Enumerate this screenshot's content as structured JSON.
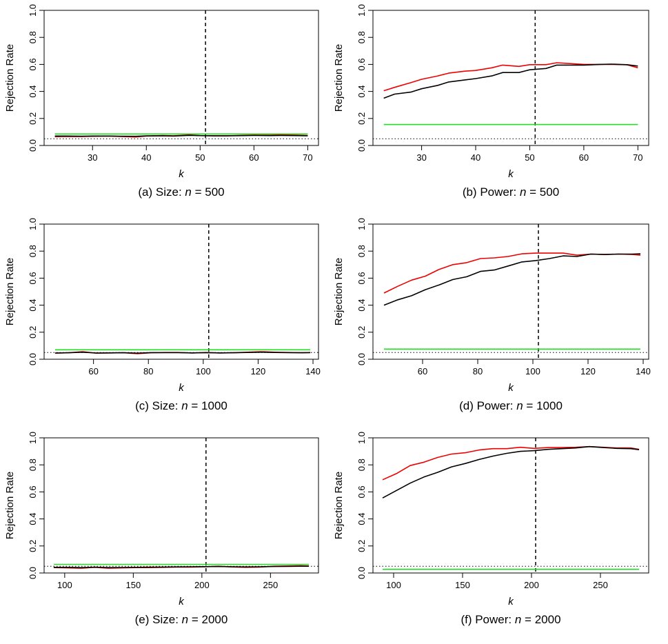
{
  "chart_data": [
    {
      "id": "a",
      "type": "line",
      "caption_prefix": "(a) Size: ",
      "caption_var": "n",
      "caption_suffix": " = 500",
      "xlabel": "k",
      "ylabel": "Rejection Rate",
      "xlim": [
        21,
        72
      ],
      "ylim": [
        0,
        1
      ],
      "xticks": [
        30,
        40,
        50,
        60,
        70
      ],
      "yticks": [
        0.0,
        0.2,
        0.4,
        0.6,
        0.8,
        1.0
      ],
      "vline": 51,
      "hline": 0.05,
      "series": [
        {
          "name": "green",
          "color": "#22dd22",
          "x": [
            23,
            70
          ],
          "y": [
            0.085,
            0.085
          ]
        },
        {
          "name": "red",
          "color": "#ee0000",
          "x": [
            23,
            25,
            28,
            30,
            33,
            35,
            38,
            40,
            43,
            45,
            48,
            50,
            53,
            55,
            58,
            60,
            63,
            65,
            68,
            70
          ],
          "y": [
            0.065,
            0.067,
            0.066,
            0.068,
            0.07,
            0.067,
            0.063,
            0.07,
            0.074,
            0.072,
            0.078,
            0.073,
            0.071,
            0.072,
            0.075,
            0.077,
            0.076,
            0.078,
            0.076,
            0.074
          ]
        },
        {
          "name": "black",
          "color": "#000000",
          "x": [
            23,
            25,
            28,
            30,
            33,
            35,
            38,
            40,
            43,
            45,
            48,
            50,
            53,
            55,
            58,
            60,
            63,
            65,
            68,
            70
          ],
          "y": [
            0.07,
            0.07,
            0.069,
            0.07,
            0.07,
            0.069,
            0.068,
            0.071,
            0.072,
            0.07,
            0.075,
            0.073,
            0.072,
            0.072,
            0.073,
            0.074,
            0.073,
            0.074,
            0.073,
            0.072
          ]
        }
      ]
    },
    {
      "id": "b",
      "type": "line",
      "caption_prefix": "(b) Power: ",
      "caption_var": "n",
      "caption_suffix": " = 500",
      "xlabel": "k",
      "ylabel": "Rejection Rate",
      "xlim": [
        21,
        72
      ],
      "ylim": [
        0,
        1
      ],
      "xticks": [
        30,
        40,
        50,
        60,
        70
      ],
      "yticks": [
        0.0,
        0.2,
        0.4,
        0.6,
        0.8,
        1.0
      ],
      "vline": 51,
      "hline": 0.05,
      "series": [
        {
          "name": "green",
          "color": "#22dd22",
          "x": [
            23,
            70
          ],
          "y": [
            0.155,
            0.155
          ]
        },
        {
          "name": "red",
          "color": "#ee0000",
          "x": [
            23,
            25,
            28,
            30,
            33,
            35,
            38,
            40,
            43,
            45,
            48,
            50,
            53,
            55,
            58,
            60,
            63,
            65,
            68,
            70
          ],
          "y": [
            0.405,
            0.43,
            0.465,
            0.49,
            0.515,
            0.535,
            0.55,
            0.555,
            0.575,
            0.595,
            0.585,
            0.598,
            0.598,
            0.612,
            0.605,
            0.6,
            0.6,
            0.6,
            0.597,
            0.575
          ]
        },
        {
          "name": "black",
          "color": "#000000",
          "x": [
            23,
            25,
            28,
            30,
            33,
            35,
            38,
            40,
            43,
            45,
            48,
            50,
            53,
            55,
            58,
            60,
            63,
            65,
            68,
            70
          ],
          "y": [
            0.35,
            0.38,
            0.395,
            0.42,
            0.445,
            0.47,
            0.485,
            0.495,
            0.515,
            0.54,
            0.54,
            0.56,
            0.57,
            0.595,
            0.595,
            0.595,
            0.6,
            0.602,
            0.598,
            0.588
          ]
        }
      ]
    },
    {
      "id": "c",
      "type": "line",
      "caption_prefix": "(c) Size: ",
      "caption_var": "n",
      "caption_suffix": " = 1000",
      "xlabel": "k",
      "ylabel": "Rejection Rate",
      "xlim": [
        42,
        142
      ],
      "ylim": [
        0,
        1
      ],
      "xticks": [
        60,
        80,
        100,
        120,
        140
      ],
      "yticks": [
        0.0,
        0.2,
        0.4,
        0.6,
        0.8,
        1.0
      ],
      "vline": 102,
      "hline": 0.05,
      "series": [
        {
          "name": "green",
          "color": "#22dd22",
          "x": [
            46,
            139
          ],
          "y": [
            0.07,
            0.07
          ]
        },
        {
          "name": "red",
          "color": "#ee0000",
          "x": [
            46,
            51,
            56,
            61,
            66,
            71,
            76,
            81,
            86,
            91,
            96,
            101,
            106,
            111,
            116,
            121,
            126,
            131,
            136,
            139
          ],
          "y": [
            0.045,
            0.048,
            0.056,
            0.045,
            0.047,
            0.048,
            0.041,
            0.048,
            0.05,
            0.05,
            0.046,
            0.05,
            0.046,
            0.048,
            0.052,
            0.056,
            0.052,
            0.05,
            0.048,
            0.05
          ]
        },
        {
          "name": "black",
          "color": "#000000",
          "x": [
            46,
            51,
            56,
            61,
            66,
            71,
            76,
            81,
            86,
            91,
            96,
            101,
            106,
            111,
            116,
            121,
            126,
            131,
            136,
            139
          ],
          "y": [
            0.046,
            0.048,
            0.052,
            0.046,
            0.047,
            0.048,
            0.045,
            0.049,
            0.049,
            0.049,
            0.047,
            0.049,
            0.047,
            0.048,
            0.05,
            0.052,
            0.05,
            0.049,
            0.048,
            0.049
          ]
        }
      ]
    },
    {
      "id": "d",
      "type": "line",
      "caption_prefix": "(d) Power: ",
      "caption_var": "n",
      "caption_suffix": " = 1000",
      "xlabel": "k",
      "ylabel": "Rejection Rate",
      "xlim": [
        42,
        142
      ],
      "ylim": [
        0,
        1
      ],
      "xticks": [
        60,
        80,
        100,
        120,
        140
      ],
      "yticks": [
        0.0,
        0.2,
        0.4,
        0.6,
        0.8,
        1.0
      ],
      "vline": 102,
      "hline": 0.05,
      "series": [
        {
          "name": "green",
          "color": "#22dd22",
          "x": [
            46,
            139
          ],
          "y": [
            0.075,
            0.075
          ]
        },
        {
          "name": "red",
          "color": "#ee0000",
          "x": [
            46,
            51,
            56,
            61,
            66,
            71,
            76,
            81,
            86,
            91,
            96,
            101,
            106,
            111,
            116,
            121,
            126,
            131,
            136,
            139
          ],
          "y": [
            0.49,
            0.54,
            0.585,
            0.615,
            0.665,
            0.7,
            0.715,
            0.745,
            0.75,
            0.76,
            0.78,
            0.785,
            0.785,
            0.785,
            0.77,
            0.778,
            0.775,
            0.778,
            0.775,
            0.77
          ]
        },
        {
          "name": "black",
          "color": "#000000",
          "x": [
            46,
            51,
            56,
            61,
            66,
            71,
            76,
            81,
            86,
            91,
            96,
            101,
            106,
            111,
            116,
            121,
            126,
            131,
            136,
            139
          ],
          "y": [
            0.4,
            0.44,
            0.47,
            0.515,
            0.55,
            0.59,
            0.61,
            0.65,
            0.66,
            0.69,
            0.72,
            0.73,
            0.745,
            0.765,
            0.76,
            0.778,
            0.775,
            0.778,
            0.778,
            0.78
          ]
        }
      ]
    },
    {
      "id": "e",
      "type": "line",
      "caption_prefix": "(e) Size: ",
      "caption_var": "n",
      "caption_suffix": " = 2000",
      "xlabel": "k",
      "ylabel": "Rejection Rate",
      "xlim": [
        85,
        285
      ],
      "ylim": [
        0,
        1
      ],
      "xticks": [
        100,
        150,
        200,
        250
      ],
      "yticks": [
        0.0,
        0.2,
        0.4,
        0.6,
        0.8,
        1.0
      ],
      "vline": 203,
      "hline": 0.05,
      "series": [
        {
          "name": "green",
          "color": "#22dd22",
          "x": [
            92,
            278
          ],
          "y": [
            0.064,
            0.064
          ]
        },
        {
          "name": "red",
          "color": "#ee0000",
          "x": [
            92,
            102,
            112,
            122,
            132,
            142,
            152,
            162,
            172,
            182,
            192,
            202,
            212,
            222,
            232,
            242,
            252,
            262,
            272,
            278
          ],
          "y": [
            0.04,
            0.038,
            0.035,
            0.042,
            0.035,
            0.038,
            0.04,
            0.04,
            0.042,
            0.044,
            0.044,
            0.046,
            0.05,
            0.045,
            0.042,
            0.044,
            0.05,
            0.052,
            0.054,
            0.052
          ]
        },
        {
          "name": "black",
          "color": "#000000",
          "x": [
            92,
            102,
            112,
            122,
            132,
            142,
            152,
            162,
            172,
            182,
            192,
            202,
            212,
            222,
            232,
            242,
            252,
            262,
            272,
            278
          ],
          "y": [
            0.042,
            0.042,
            0.04,
            0.043,
            0.04,
            0.041,
            0.042,
            0.043,
            0.044,
            0.045,
            0.046,
            0.047,
            0.048,
            0.046,
            0.045,
            0.046,
            0.048,
            0.049,
            0.05,
            0.05
          ]
        }
      ]
    },
    {
      "id": "f",
      "type": "line",
      "caption_prefix": "(f) Power: ",
      "caption_var": "n",
      "caption_suffix": " = 2000",
      "xlabel": "k",
      "ylabel": "Rejection Rate",
      "xlim": [
        85,
        285
      ],
      "ylim": [
        0,
        1
      ],
      "xticks": [
        100,
        150,
        200,
        250
      ],
      "yticks": [
        0.0,
        0.2,
        0.4,
        0.6,
        0.8,
        1.0
      ],
      "vline": 203,
      "hline": 0.05,
      "series": [
        {
          "name": "green",
          "color": "#22dd22",
          "x": [
            92,
            278
          ],
          "y": [
            0.027,
            0.027
          ]
        },
        {
          "name": "red",
          "color": "#ee0000",
          "x": [
            92,
            102,
            112,
            122,
            132,
            142,
            152,
            162,
            172,
            182,
            192,
            202,
            212,
            222,
            232,
            242,
            252,
            262,
            272,
            278
          ],
          "y": [
            0.69,
            0.735,
            0.795,
            0.82,
            0.855,
            0.88,
            0.89,
            0.91,
            0.92,
            0.92,
            0.93,
            0.922,
            0.928,
            0.928,
            0.93,
            0.935,
            0.93,
            0.925,
            0.925,
            0.915
          ]
        },
        {
          "name": "black",
          "color": "#000000",
          "x": [
            92,
            102,
            112,
            122,
            132,
            142,
            152,
            162,
            172,
            182,
            192,
            202,
            212,
            222,
            232,
            242,
            252,
            262,
            272,
            278
          ],
          "y": [
            0.555,
            0.61,
            0.665,
            0.71,
            0.745,
            0.785,
            0.81,
            0.84,
            0.865,
            0.885,
            0.9,
            0.905,
            0.915,
            0.92,
            0.925,
            0.935,
            0.928,
            0.922,
            0.92,
            0.912
          ]
        }
      ]
    }
  ]
}
